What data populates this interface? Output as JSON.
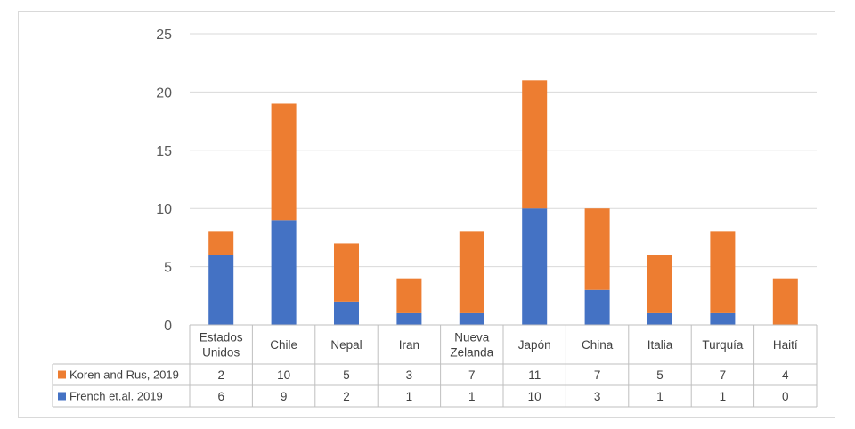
{
  "chart_data": {
    "type": "bar",
    "stacked": true,
    "title": "",
    "xlabel": "",
    "ylabel": "",
    "ylim": [
      0,
      25
    ],
    "yticks": [
      0,
      5,
      10,
      15,
      20,
      25
    ],
    "grid": true,
    "categories": [
      "Estados Unidos",
      "Chile",
      "Nepal",
      "Iran",
      "Nueva Zelanda",
      "Japón",
      "China",
      "Italia",
      "Turquía",
      "Haití"
    ],
    "category_lines": [
      [
        "Estados",
        "Unidos"
      ],
      [
        "Chile"
      ],
      [
        "Nepal"
      ],
      [
        "Iran"
      ],
      [
        "Nueva",
        "Zelanda"
      ],
      [
        "Japón"
      ],
      [
        "China"
      ],
      [
        "Italia"
      ],
      [
        "Turquía"
      ],
      [
        "Haití"
      ]
    ],
    "series": [
      {
        "name": "French et.al. 2019",
        "color": "#4472c4",
        "values": [
          6,
          9,
          2,
          1,
          1,
          10,
          3,
          1,
          1,
          0
        ]
      },
      {
        "name": "Koren and Rus, 2019",
        "color": "#ed7d31",
        "values": [
          2,
          10,
          5,
          3,
          7,
          11,
          7,
          5,
          7,
          4
        ]
      }
    ],
    "table_row_order": [
      1,
      0
    ],
    "legend": "data-table"
  }
}
